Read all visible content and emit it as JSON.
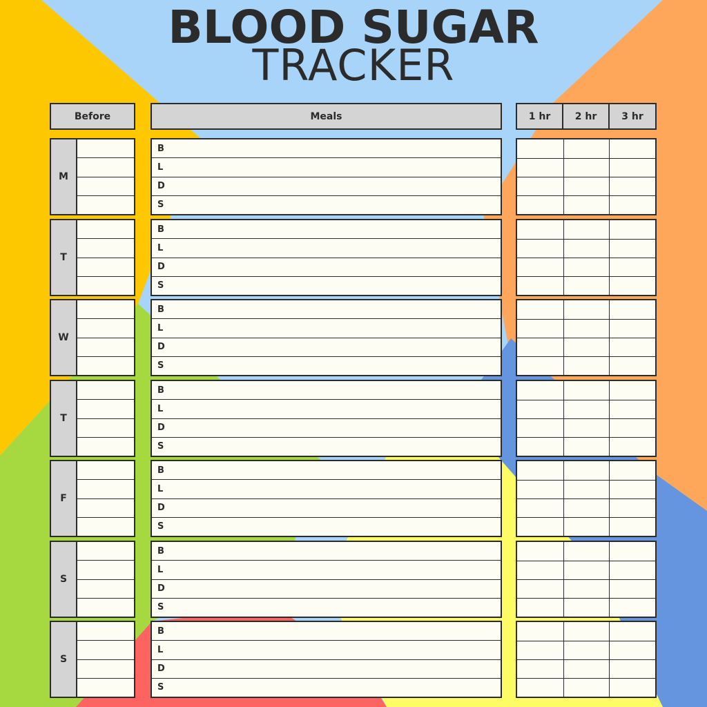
{
  "title": {
    "line1": "BLOOD SUGAR",
    "line2": "TRACKER"
  },
  "headers": {
    "before": "Before",
    "meals": "Meals",
    "hours": [
      "1 hr",
      "2 hr",
      "3 hr"
    ]
  },
  "days": [
    "M",
    "T",
    "W",
    "T",
    "F",
    "S",
    "S"
  ],
  "meal_rows": [
    "B",
    "L",
    "D",
    "S"
  ],
  "colors": {
    "light_blue": "#a7d4f8",
    "yellow_orange": "#fec800",
    "orange": "#fea75a",
    "green": "#a6d93f",
    "blue": "#6495de",
    "yellow": "#fdfc64",
    "red": "#fd6461",
    "header_gray": "#d4d4d4",
    "cell_fill": "#fdfdf3",
    "ink": "#2b2b2b"
  }
}
